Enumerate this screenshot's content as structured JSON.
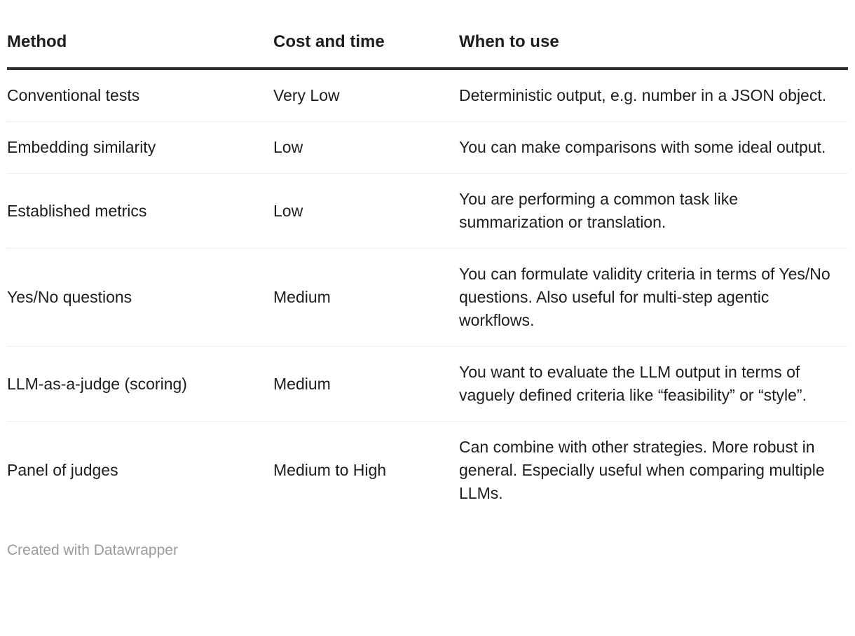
{
  "chart_data": {
    "type": "table",
    "columns": [
      "Method",
      "Cost and time",
      "When to use"
    ],
    "rows": [
      [
        "Conventional tests",
        "Very Low",
        "Deterministic output, e.g. number in a JSON object."
      ],
      [
        "Embedding similarity",
        "Low",
        "You can make comparisons with some ideal output."
      ],
      [
        "Established metrics",
        "Low",
        "You are performing a common task like summarization or translation."
      ],
      [
        "Yes/No questions",
        "Medium",
        "You can formulate validity criteria in terms of Yes/No questions. Also useful for multi-step agentic workflows."
      ],
      [
        "LLM-as-a-judge (scoring)",
        "Medium",
        "You want to evaluate the LLM output in terms of vaguely defined criteria like “feasibility” or “style”."
      ],
      [
        "Panel of judges",
        "Medium to High",
        "Can combine with other strategies. More robust in general. Especially useful when comparing multiple LLMs."
      ]
    ],
    "attribution": "Created with Datawrapper",
    "layout_hints": {
      "header_rule_color": "#2e2e2e",
      "row_divider_color": "#eeeeee",
      "text_color": "#1d1d1d",
      "muted_text_color": "#9b9b9b",
      "background": "#ffffff"
    }
  }
}
